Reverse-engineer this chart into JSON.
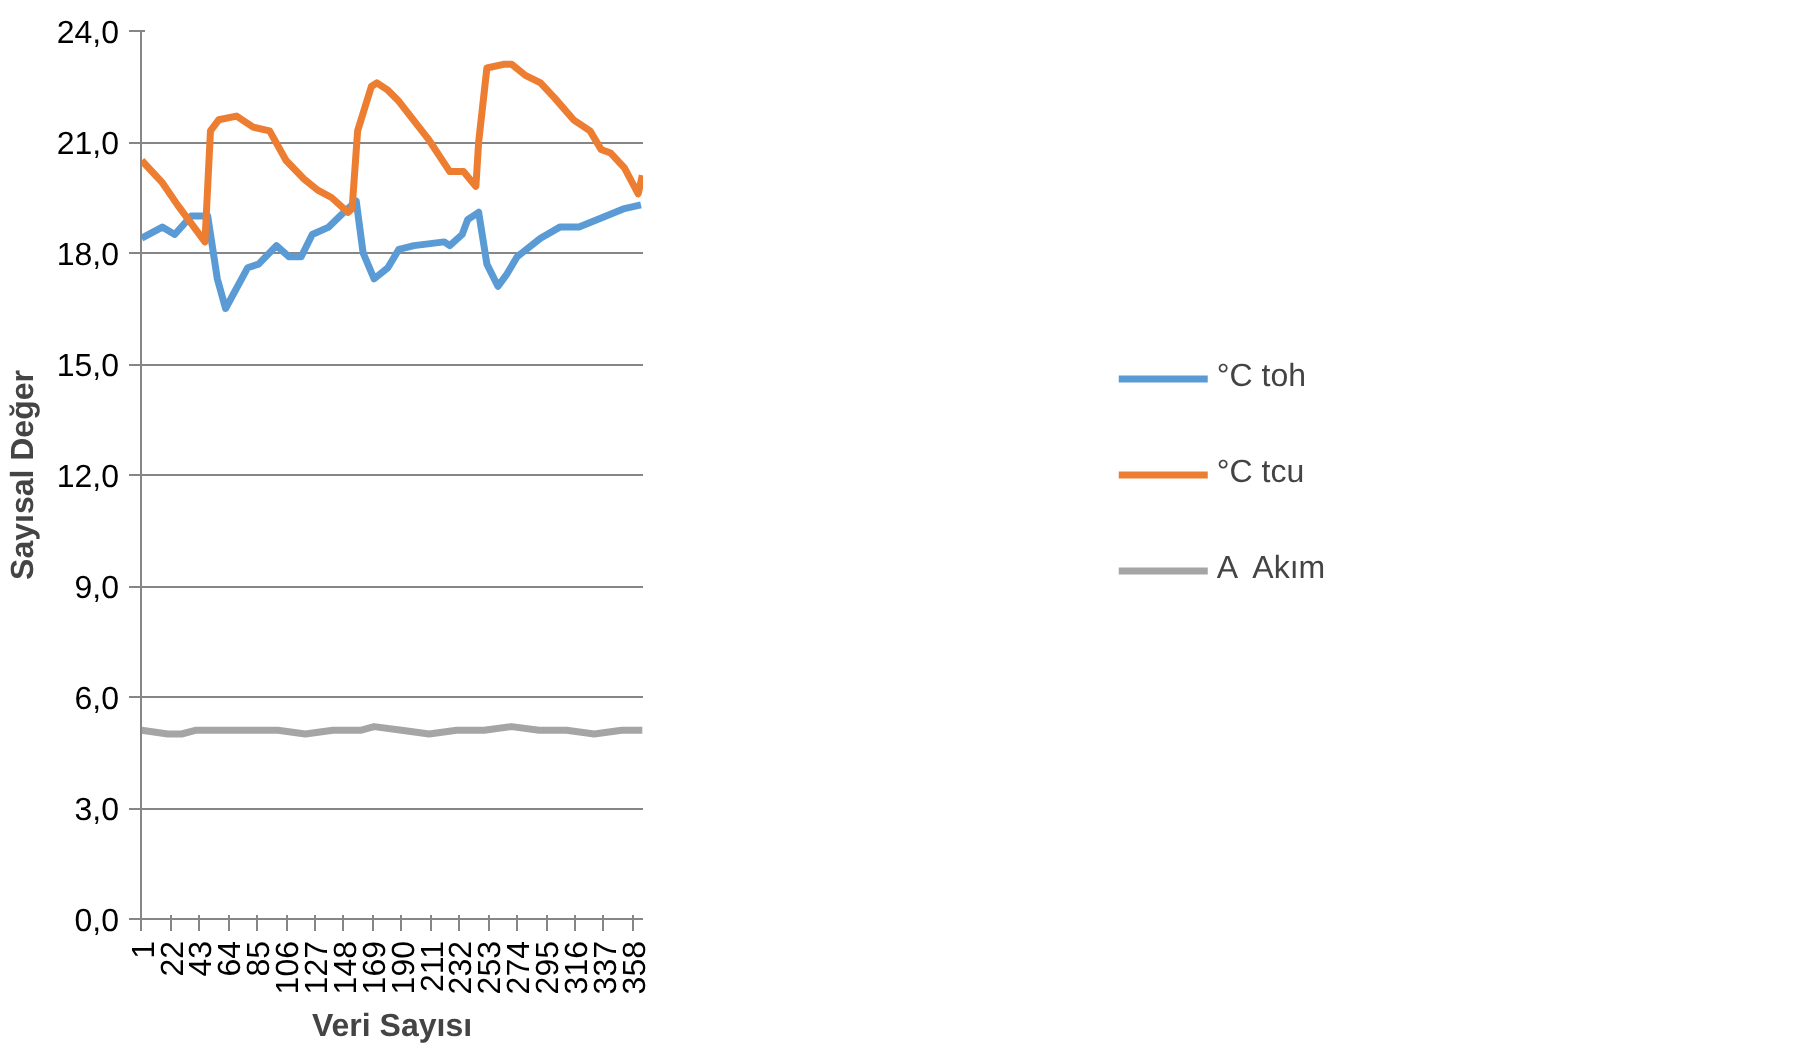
{
  "chart_data": {
    "type": "line",
    "xlabel": "Veri Sayısı",
    "ylabel": "Sayısal Değer",
    "xlim": [
      0.5,
      365.5
    ],
    "xticks": [
      1,
      22,
      43,
      64,
      85,
      106,
      127,
      148,
      169,
      190,
      211,
      232,
      253,
      274,
      295,
      316,
      337,
      358
    ],
    "ylim": [
      0,
      24
    ],
    "yticks": [
      {
        "value": 0,
        "label": "0,0"
      },
      {
        "value": 3,
        "label": "3,0"
      },
      {
        "value": 6,
        "label": "6,0"
      },
      {
        "value": 9,
        "label": "9,0"
      },
      {
        "value": 12,
        "label": "12,0"
      },
      {
        "value": 15,
        "label": "15,0"
      },
      {
        "value": 18,
        "label": "18,0"
      },
      {
        "value": 21,
        "label": "21,0"
      },
      {
        "value": 24,
        "label": "24,0"
      }
    ],
    "grid": "y",
    "legend": "right",
    "marker": "none",
    "line_style": "solid",
    "series": [
      {
        "name": "°C toh",
        "color": "#5b9bd5",
        "x": [
          1,
          16,
          25,
          37,
          49,
          56,
          62,
          78,
          86,
          99,
          108,
          117,
          125,
          137,
          148,
          157,
          162,
          170,
          180,
          188,
          199,
          221,
          225,
          234,
          238,
          246,
          252,
          260,
          266,
          274,
          291,
          305,
          319,
          332,
          352,
          364
        ],
        "values": [
          18.4,
          18.7,
          18.5,
          19.0,
          19.0,
          17.3,
          16.5,
          17.6,
          17.7,
          18.2,
          17.9,
          17.9,
          18.5,
          18.7,
          19.1,
          19.4,
          18.0,
          17.3,
          17.6,
          18.1,
          18.2,
          18.3,
          18.2,
          18.5,
          18.9,
          19.1,
          17.7,
          17.1,
          17.4,
          17.9,
          18.4,
          18.7,
          18.7,
          18.9,
          19.2,
          19.3
        ]
      },
      {
        "name": "°C tcu",
        "color": "#ed7d31",
        "x": [
          1,
          16,
          27,
          37,
          47,
          51,
          57,
          70,
          82,
          94,
          106,
          119,
          129,
          139,
          151,
          154,
          158,
          168,
          172,
          180,
          188,
          209,
          225,
          235,
          244,
          246,
          252,
          264,
          270,
          280,
          291,
          301,
          315,
          327,
          335,
          342,
          352,
          362,
          365
        ],
        "values": [
          20.5,
          19.9,
          19.3,
          18.8,
          18.3,
          21.3,
          21.6,
          21.7,
          21.4,
          21.3,
          20.5,
          20.0,
          19.7,
          19.5,
          19.1,
          19.2,
          21.3,
          22.5,
          22.6,
          22.4,
          22.1,
          21.1,
          20.2,
          20.2,
          19.8,
          21.0,
          23.0,
          23.1,
          23.1,
          22.8,
          22.6,
          22.2,
          21.6,
          21.3,
          20.8,
          20.7,
          20.3,
          19.6,
          20.1
        ]
      },
      {
        "name": "A  Akım",
        "color": "#a5a5a5",
        "x": [
          1,
          20,
          30,
          40,
          60,
          80,
          100,
          120,
          140,
          160,
          170,
          190,
          210,
          230,
          250,
          270,
          290,
          310,
          330,
          350,
          365
        ],
        "values": [
          5.1,
          5.0,
          5.0,
          5.1,
          5.1,
          5.1,
          5.1,
          5.0,
          5.1,
          5.1,
          5.2,
          5.1,
          5.0,
          5.1,
          5.1,
          5.2,
          5.1,
          5.1,
          5.0,
          5.1,
          5.1
        ]
      }
    ]
  }
}
